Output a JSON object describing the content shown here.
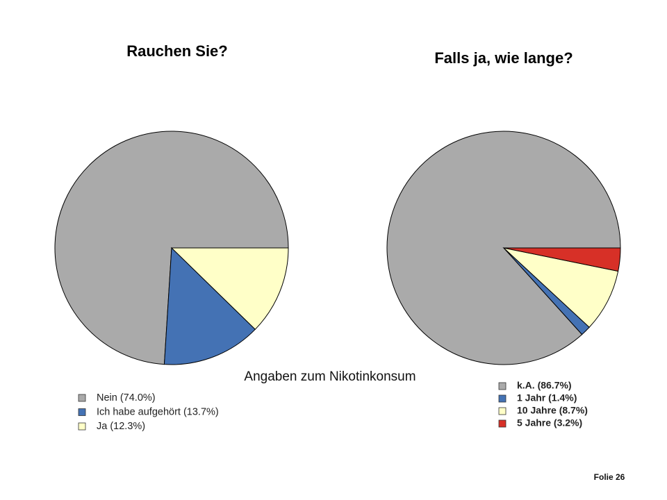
{
  "chart_data": [
    {
      "type": "pie",
      "title": "Rauchen Sie?",
      "categories": [
        "Nein (74.0%)",
        "Ich habe aufgehört (13.7%)",
        "Ja (12.3%)"
      ],
      "values": [
        74.0,
        13.7,
        12.3
      ],
      "colors": [
        "#aaaaaa",
        "#4472b4",
        "#ffffc8"
      ]
    },
    {
      "type": "pie",
      "title": "Falls ja, wie lange?",
      "categories": [
        "k.A. (86.7%)",
        "1 Jahr (1.4%)",
        "10 Jahre (8.7%)",
        "5 Jahre (3.2%)"
      ],
      "values": [
        86.7,
        1.4,
        8.7,
        3.2
      ],
      "colors": [
        "#aaaaaa",
        "#4472b4",
        "#ffffc8",
        "#d73027"
      ]
    }
  ],
  "caption": "Angaben zum Nikotinkonsum",
  "footer": "Folie 26"
}
